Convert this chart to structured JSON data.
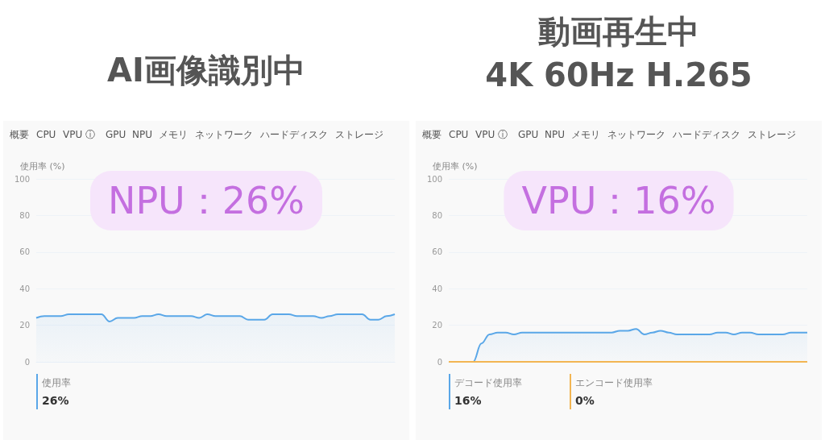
{
  "chart_data": [
    {
      "type": "area",
      "title": "AI画像識別中",
      "ylabel": "使用率 (%)",
      "categories": [
        null,
        null,
        null,
        null,
        null,
        null,
        null,
        null,
        null,
        null,
        null,
        null,
        null,
        null,
        null,
        null,
        null,
        null,
        null,
        null,
        null,
        null,
        null,
        null,
        null,
        null,
        null,
        null,
        null,
        null,
        null,
        null,
        null,
        null,
        null,
        null,
        null,
        null,
        null,
        null,
        null,
        null,
        null,
        null,
        null
      ],
      "series": [
        {
          "name": "使用率",
          "color": "#5aa7e8",
          "values": [
            24,
            25,
            25,
            25,
            26,
            26,
            26,
            26,
            26,
            22,
            24,
            24,
            24,
            25,
            25,
            26,
            25,
            25,
            25,
            25,
            24,
            26,
            25,
            25,
            25,
            25,
            23,
            23,
            23,
            26,
            26,
            26,
            25,
            25,
            25,
            24,
            25,
            26,
            26,
            26,
            26,
            23,
            23,
            25,
            26
          ]
        }
      ],
      "ylim": [
        0,
        100
      ],
      "yticks": [
        0,
        20,
        40,
        60,
        80,
        100
      ],
      "grid": "y",
      "legend": "bottom left",
      "tick_labels": "y",
      "annotations": [
        "NPU：26%",
        "26%",
        "概要",
        "CPU",
        "VPU ⓘ",
        "GPU",
        "NPU",
        "メモリ",
        "ネットワーク",
        "ハードディスク",
        "ストレージ"
      ]
    },
    {
      "type": "area",
      "title": "動画再生中",
      "subtitle": "4K 60Hz H.265",
      "ylabel": "使用率 (%)",
      "categories": [
        null,
        null,
        null,
        null,
        null,
        null,
        null,
        null,
        null,
        null,
        null,
        null,
        null,
        null,
        null,
        null,
        null,
        null,
        null,
        null,
        null,
        null,
        null,
        null,
        null,
        null,
        null,
        null,
        null,
        null,
        null,
        null,
        null,
        null,
        null,
        null,
        null,
        null,
        null,
        null,
        null,
        null,
        null,
        null,
        null
      ],
      "series": [
        {
          "name": "デコード使用率",
          "color": "#5aa7e8",
          "values": [
            0,
            0,
            0,
            0,
            10,
            15,
            16,
            16,
            15,
            16,
            16,
            16,
            16,
            16,
            16,
            16,
            16,
            16,
            16,
            16,
            16,
            17,
            17,
            18,
            15,
            16,
            17,
            16,
            15,
            15,
            15,
            15,
            15,
            16,
            16,
            15,
            16,
            16,
            15,
            15,
            15,
            15,
            16,
            16,
            16
          ]
        },
        {
          "name": "エンコード使用率",
          "type": "line",
          "color": "#f2b552",
          "values": [
            0,
            0,
            0,
            0,
            0,
            0,
            0,
            0,
            0,
            0,
            0,
            0,
            0,
            0,
            0,
            0,
            0,
            0,
            0,
            0,
            0,
            0,
            0,
            0,
            0,
            0,
            0,
            0,
            0,
            0,
            0,
            0,
            0,
            0,
            0,
            0,
            0,
            0,
            0,
            0,
            0,
            0,
            0,
            0,
            0
          ]
        }
      ],
      "ylim": [
        0,
        100
      ],
      "yticks": [
        0,
        20,
        40,
        60,
        80,
        100
      ],
      "grid": "y",
      "legend": "bottom left",
      "tick_labels": "y",
      "annotations": [
        "VPU：16%",
        "16%",
        "0%",
        "概要",
        "CPU",
        "VPU ⓘ",
        "GPU",
        "NPU",
        "メモリ",
        "ネットワーク",
        "ハードディスク",
        "ストレージ"
      ]
    }
  ]
}
